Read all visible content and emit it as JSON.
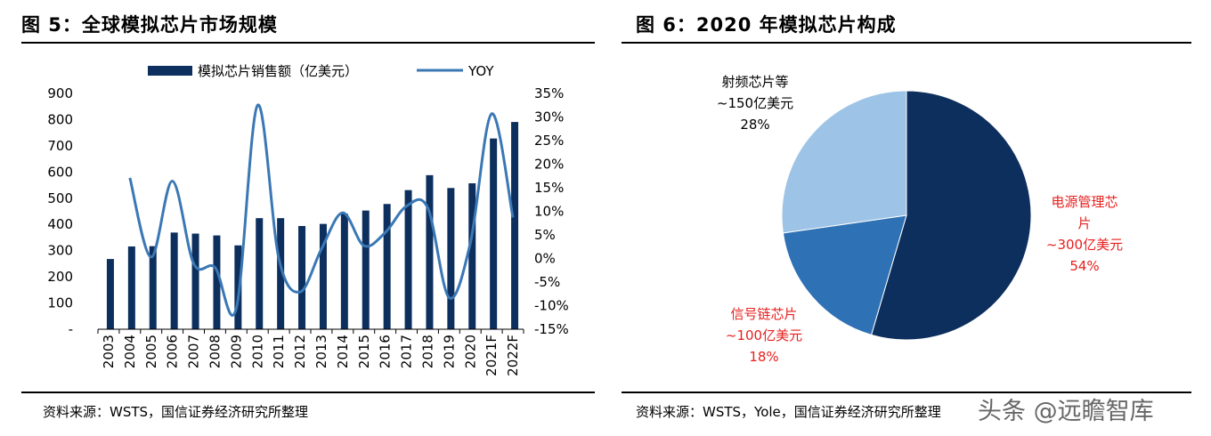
{
  "left_panel": {
    "title": "图 5：全球模拟芯片市场规模",
    "source": "资料来源：WSTS，国信证券经济研究所整理"
  },
  "right_panel": {
    "title": "图 6：2020 年模拟芯片构成",
    "source": "资料来源：WSTS，Yole，国信证券经济研究所整理"
  },
  "watermark": "头条 @远瞻智库",
  "colors": {
    "bar": "#0d2f5e",
    "line": "#3a78b5",
    "pie_power": "#0d2f5e",
    "pie_signal": "#2e71b5",
    "pie_rf": "#9dc3e6",
    "red_label": "#e8201e"
  },
  "chart_data": [
    {
      "type": "bar",
      "title": "",
      "categories": [
        "2003",
        "2004",
        "2005",
        "2006",
        "2007",
        "2008",
        "2009",
        "2010",
        "2011",
        "2012",
        "2013",
        "2014",
        "2015",
        "2016",
        "2017",
        "2018",
        "2019",
        "2020",
        "2021F",
        "2022F"
      ],
      "series": [
        {
          "name": "模拟芯片销售额（亿美元）",
          "type": "bar",
          "axis": "left",
          "values": [
            268,
            316,
            317,
            369,
            365,
            358,
            320,
            424,
            424,
            394,
            402,
            441,
            453,
            478,
            531,
            588,
            539,
            557,
            728,
            791
          ]
        },
        {
          "name": "YOY",
          "type": "line",
          "axis": "right",
          "values": [
            null,
            17.1,
            0.3,
            16.4,
            -1.1,
            -1.9,
            -10.6,
            32.5,
            0.0,
            -7.1,
            2.0,
            9.7,
            2.7,
            5.5,
            11.1,
            10.7,
            -8.3,
            3.3,
            30.7,
            8.7
          ]
        }
      ],
      "y_left": {
        "ylim": [
          0,
          900
        ],
        "ticks": [
          "-",
          "100",
          "200",
          "300",
          "400",
          "500",
          "600",
          "700",
          "800",
          "900"
        ]
      },
      "y_right": {
        "ylim": [
          -15,
          35
        ],
        "ticks": [
          "-15%",
          "-10%",
          "-5%",
          "0%",
          "5%",
          "10%",
          "15%",
          "20%",
          "25%",
          "30%",
          "35%"
        ]
      },
      "legend": "top"
    },
    {
      "type": "pie",
      "title": "",
      "slices": [
        {
          "name": "电源管理芯片",
          "label_lines": [
            "电源管理芯",
            "片",
            "~300亿美元",
            "54%"
          ],
          "value": 300,
          "percent": 54,
          "color": "#0d2f5e"
        },
        {
          "name": "信号链芯片",
          "label_lines": [
            "信号链芯片",
            "~100亿美元",
            "18%"
          ],
          "value": 100,
          "percent": 18,
          "color": "#2e71b5"
        },
        {
          "name": "射频芯片等",
          "label_lines": [
            "射频芯片等",
            "~150亿美元",
            "28%"
          ],
          "value": 150,
          "percent": 28,
          "color": "#9dc3e6"
        }
      ]
    }
  ]
}
